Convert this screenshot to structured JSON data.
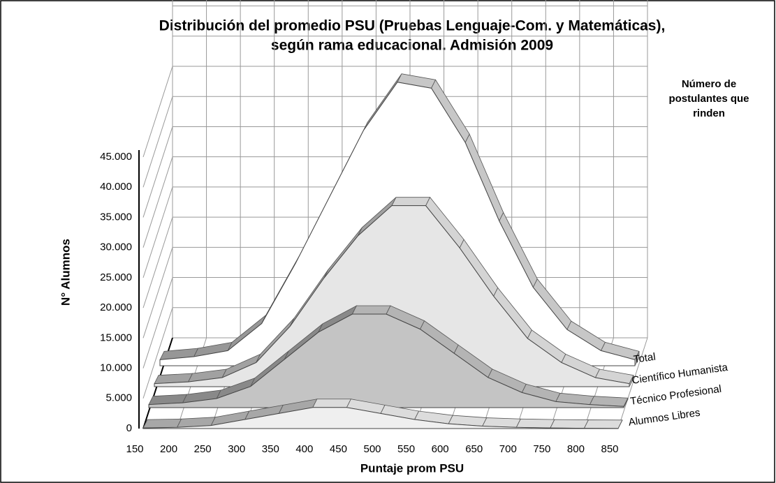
{
  "chart_data": {
    "type": "area3d",
    "title_lines": [
      "Distribución del promedio PSU (Pruebas Lenguaje-Com. y Matemáticas),",
      "según rama educacional. Admisión 2009"
    ],
    "annotation": "Número de postulantes que rinden",
    "x_label": "Puntaje prom PSU",
    "y_label": "N° Alumnos",
    "x": [
      150,
      200,
      250,
      300,
      350,
      400,
      450,
      500,
      550,
      600,
      650,
      700,
      750,
      800,
      850
    ],
    "xlim": [
      150,
      850
    ],
    "ylim": [
      0,
      45000
    ],
    "yticks": [
      0,
      {
        "value": 5000,
        "label": "5.000"
      },
      {
        "value": 10000,
        "label": "10.000"
      },
      {
        "value": 15000,
        "label": "15.000"
      },
      {
        "value": 20000,
        "label": "20.000"
      },
      {
        "value": 25000,
        "label": "25.000"
      },
      {
        "value": 30000,
        "label": "30.000"
      },
      {
        "value": 35000,
        "label": "35.000"
      },
      {
        "value": 40000,
        "label": "40.000"
      },
      {
        "value": 45000,
        "label": "45.000"
      }
    ],
    "grid": true,
    "series": [
      {
        "name": "Total",
        "color": "#ffffff",
        "values": [
          1000,
          1500,
          2500,
          7000,
          17000,
          28000,
          39000,
          47000,
          46000,
          37000,
          24000,
          13000,
          6000,
          2500,
          1000
        ]
      },
      {
        "name": "Científico Humanista",
        "color": "#e6e6e6",
        "values": [
          500,
          800,
          1500,
          4000,
          10000,
          18000,
          25000,
          30000,
          30000,
          23000,
          15000,
          8000,
          4000,
          1500,
          500
        ]
      },
      {
        "name": "Técnico Profesional",
        "color": "#c4c4c4",
        "values": [
          500,
          800,
          1500,
          3500,
          8000,
          12500,
          15500,
          15500,
          13000,
          9000,
          5000,
          2500,
          1000,
          500,
          200
        ]
      },
      {
        "name": "Alumnos Libres",
        "color": "#efefef",
        "values": [
          100,
          200,
          500,
          1500,
          2500,
          3500,
          3500,
          2500,
          1500,
          800,
          400,
          200,
          100,
          50,
          20
        ]
      }
    ]
  }
}
